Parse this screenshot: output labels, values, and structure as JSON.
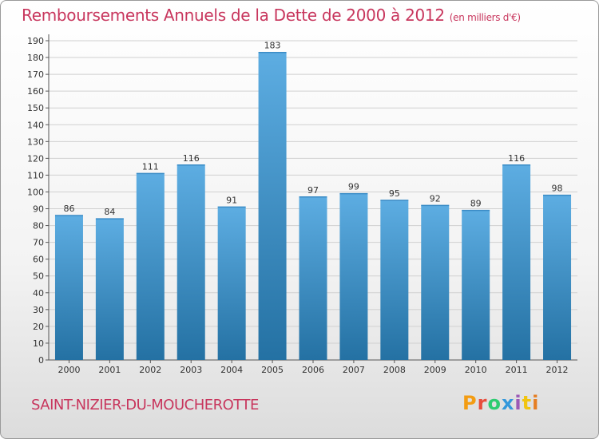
{
  "header": {
    "title": "Remboursements Annuels de la Dette de 2000 à 2012",
    "unit": "(en milliers d'€)"
  },
  "footer": {
    "commune": "SAINT-NIZIER-DU-MOUCHEROTTE",
    "brand": "Proxiti",
    "brand_colors": [
      "#f39c12",
      "#e74c3c",
      "#2ecc71",
      "#3498db",
      "#9b59b6",
      "#f1c40f",
      "#e67e22"
    ]
  },
  "chart_data": {
    "type": "bar",
    "title": "Remboursements Annuels de la Dette de 2000 à 2012",
    "subtitle": "(en milliers d'€)",
    "xlabel": "",
    "ylabel": "",
    "categories": [
      "2000",
      "2001",
      "2002",
      "2003",
      "2004",
      "2005",
      "2006",
      "2007",
      "2008",
      "2009",
      "2010",
      "2011",
      "2012"
    ],
    "values": [
      86,
      84,
      111,
      116,
      91,
      183,
      97,
      99,
      95,
      92,
      89,
      116,
      98
    ],
    "ylim": [
      0,
      190
    ],
    "yticks": [
      0,
      10,
      20,
      30,
      40,
      50,
      60,
      70,
      80,
      90,
      100,
      110,
      120,
      130,
      140,
      150,
      160,
      170,
      180,
      190
    ],
    "grid": true,
    "data_labels": true,
    "colors": {
      "bar_top": "#5dade2",
      "bar_bottom": "#2471a3",
      "grid": "#d0d0d0",
      "axis": "#555555",
      "text": "#333333"
    }
  }
}
